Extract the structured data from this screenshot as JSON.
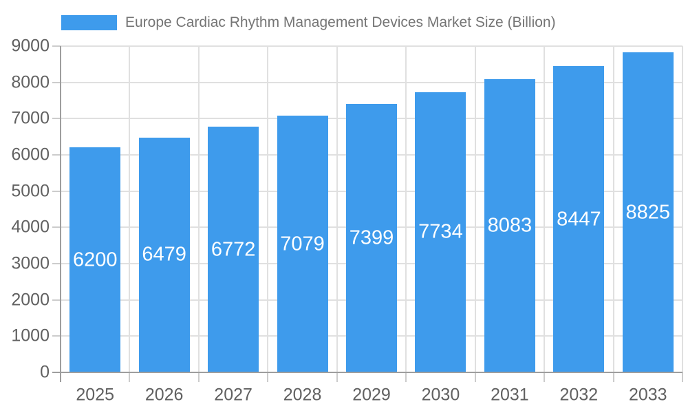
{
  "legend": {
    "label": "Europe Cardiac Rhythm Management Devices Market Size (Billion)"
  },
  "chart_data": {
    "type": "bar",
    "title": "Europe Cardiac Rhythm Management Devices Market Size (Billion)",
    "categories": [
      "2025",
      "2026",
      "2027",
      "2028",
      "2029",
      "2030",
      "2031",
      "2032",
      "2033"
    ],
    "values": [
      6200,
      6479,
      6772,
      7079,
      7399,
      7734,
      8083,
      8447,
      8825
    ],
    "value_labels": [
      "6200",
      "6479",
      "6772",
      "7079",
      "7399",
      "7734",
      "8083",
      "8447",
      "8825"
    ],
    "xlabel": "",
    "ylabel": "",
    "ylim": [
      0,
      9000
    ],
    "yticks": [
      0,
      1000,
      2000,
      3000,
      4000,
      5000,
      6000,
      7000,
      8000,
      9000
    ],
    "grid": true,
    "legend_position": "top"
  },
  "colors": {
    "bar": "#3e9bec",
    "value_label_text": "#ffffff",
    "legend_text": "#757575",
    "tick_text": "#616161",
    "gridline": "#e0e0e0",
    "tick_dash": "#cccccc",
    "axis_line": "#9e9e9e",
    "background": "#ffffff"
  }
}
